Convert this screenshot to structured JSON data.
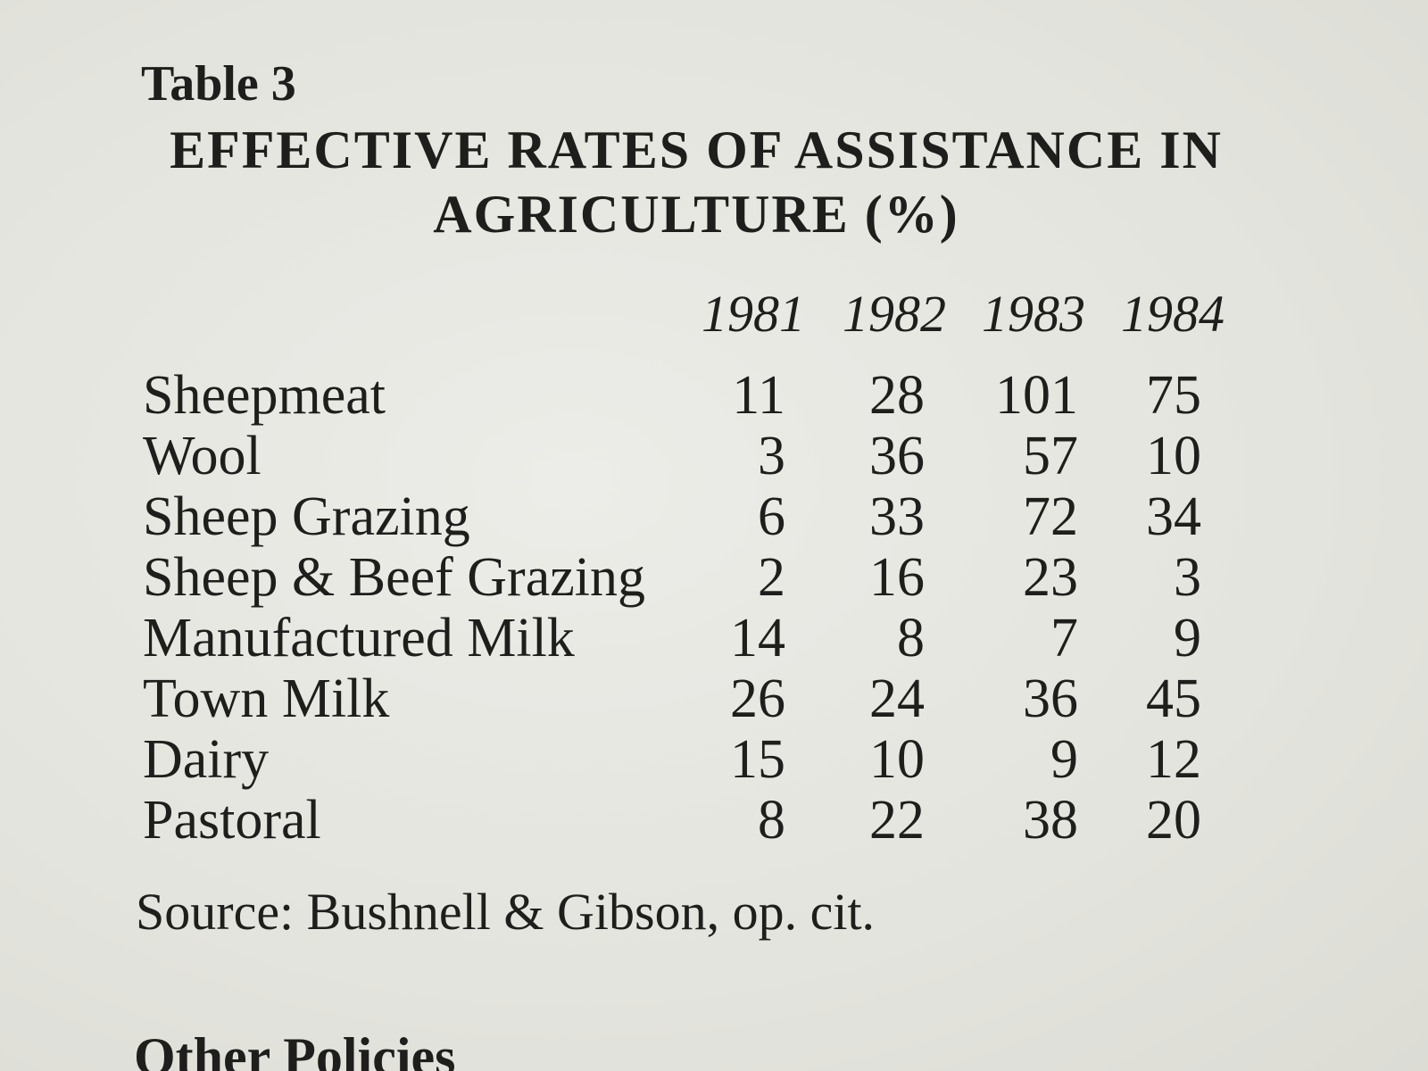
{
  "table": {
    "label": "Table 3",
    "title": "EFFECTIVE RATES OF ASSISTANCE IN AGRICULTURE (%)",
    "years": [
      "1981",
      "1982",
      "1983",
      "1984"
    ],
    "rows": [
      {
        "label": "Sheepmeat",
        "values": [
          "11",
          "28",
          "101",
          "75"
        ]
      },
      {
        "label": "Wool",
        "values": [
          "3",
          "36",
          "57",
          "10"
        ]
      },
      {
        "label": "Sheep Grazing",
        "values": [
          "6",
          "33",
          "72",
          "34"
        ]
      },
      {
        "label": "Sheep & Beef Grazing",
        "values": [
          "2",
          "16",
          "23",
          "3"
        ]
      },
      {
        "label": "Manufactured Milk",
        "values": [
          "14",
          "8",
          "7",
          "9"
        ]
      },
      {
        "label": "Town Milk",
        "values": [
          "26",
          "24",
          "36",
          "45"
        ]
      },
      {
        "label": "Dairy",
        "values": [
          "15",
          "10",
          "9",
          "12"
        ]
      },
      {
        "label": "Pastoral",
        "values": [
          "8",
          "22",
          "38",
          "20"
        ]
      }
    ],
    "source": "Source: Bushnell & Gibson, op. cit."
  },
  "bottom_heading": "Other Policies"
}
